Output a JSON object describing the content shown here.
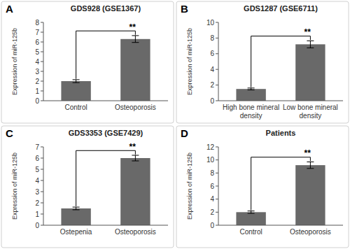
{
  "chart_data": [
    {
      "type": "bar",
      "panel_label": "A",
      "title": "GDS928 (GSE1367)",
      "categories": [
        "Control",
        "Osteoporosis"
      ],
      "values": [
        2.0,
        6.3
      ],
      "errors": [
        0.15,
        0.35
      ],
      "ylim": [
        0,
        8
      ],
      "yticks": [
        0,
        1,
        2,
        3,
        4,
        5,
        6,
        7,
        8
      ],
      "ylabel": "Expression of miR-125b",
      "color": "#696969",
      "grid": false,
      "annotations": [
        "**"
      ]
    },
    {
      "type": "bar",
      "panel_label": "B",
      "title": "GDS1287 (GSE6711)",
      "categories": [
        "High bone mineral\ndensity",
        "Low bone mineral\ndensity"
      ],
      "values": [
        1.5,
        7.2
      ],
      "errors": [
        0.12,
        0.45
      ],
      "ylim": [
        0,
        10
      ],
      "yticks": [
        0,
        2,
        4,
        6,
        8,
        10
      ],
      "ylabel": "Expression of miR-125b",
      "color": "#696969",
      "grid": false,
      "annotations": [
        "**"
      ]
    },
    {
      "type": "bar",
      "panel_label": "C",
      "title": "GDS3353 (GSE7429)",
      "categories": [
        "Ostepenia",
        "Osteoporosis"
      ],
      "values": [
        1.5,
        6.0
      ],
      "errors": [
        0.12,
        0.25
      ],
      "ylim": [
        0,
        7
      ],
      "yticks": [
        0,
        1,
        2,
        3,
        4,
        5,
        6,
        7
      ],
      "ylabel": "Expression of miR-125b",
      "color": "#696969",
      "grid": false,
      "annotations": [
        "**"
      ]
    },
    {
      "type": "bar",
      "panel_label": "D",
      "title": "Patients",
      "categories": [
        "Control",
        "Osteoporosis"
      ],
      "values": [
        2.0,
        9.2
      ],
      "errors": [
        0.18,
        0.5
      ],
      "ylim": [
        0,
        12
      ],
      "yticks": [
        0,
        2,
        4,
        6,
        8,
        10,
        12
      ],
      "ylabel": "Expression of miR-125b",
      "color": "#696969",
      "grid": false,
      "annotations": [
        "**"
      ]
    }
  ]
}
